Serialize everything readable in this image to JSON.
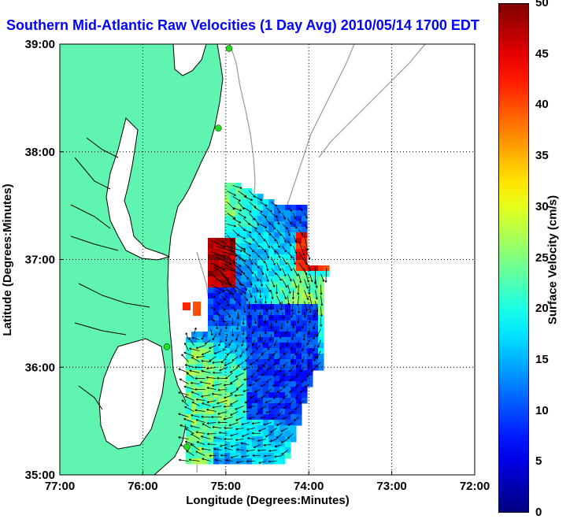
{
  "title": "Southern Mid-Atlantic Raw Velocities (1 Day Avg) 2010/05/14 1700 EDT",
  "x_axis": {
    "label": "Longitude (Degrees:Minutes)",
    "ticks": [
      "77:00",
      "76:00",
      "75:00",
      "74:00",
      "73:00",
      "72:00"
    ]
  },
  "y_axis": {
    "label": "Latitude (Degrees:Minutes)",
    "ticks": [
      "39:00",
      "38:00",
      "37:00",
      "36:00",
      "35:00"
    ]
  },
  "colorbar": {
    "label": "Surface Velocity (cm/s)",
    "ticks": [
      "50",
      "45",
      "40",
      "35",
      "30",
      "25",
      "20",
      "15",
      "10",
      "5",
      "0"
    ],
    "range": [
      0,
      50
    ],
    "colormap": "jet"
  },
  "colors": {
    "land": "#5ff5b0",
    "water": "#ffffff",
    "coastline": "#000000",
    "bathymetry": "#999999",
    "title": "#0000ff",
    "station": "#22dd22"
  },
  "map": {
    "extent_lon": [
      -77,
      -72
    ],
    "extent_lat": [
      35,
      39
    ],
    "grid": "dotted",
    "stations": [
      {
        "lon": -74.96,
        "lat": 38.96
      },
      {
        "lon": -75.09,
        "lat": 38.22
      },
      {
        "lon": -75.71,
        "lat": 36.19
      },
      {
        "lon": -75.47,
        "lat": 35.26
      }
    ]
  }
}
